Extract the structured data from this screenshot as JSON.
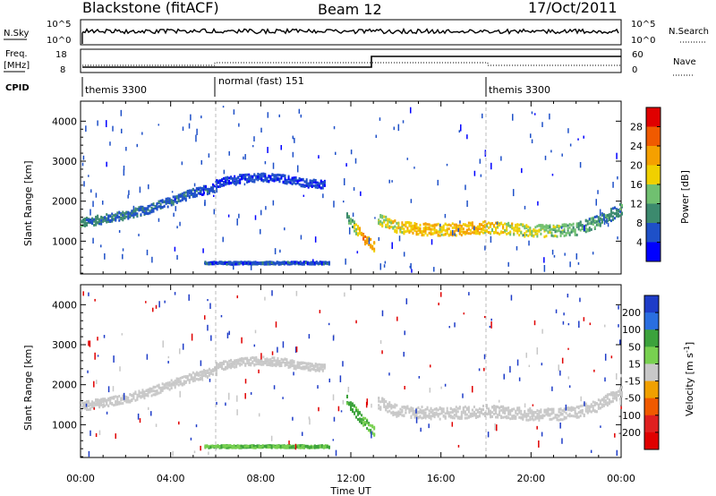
{
  "header": {
    "station": "Blackstone (fitACF)",
    "beam": "Beam 12",
    "date": "17/Oct/2011"
  },
  "status_panels": {
    "nsky_label": "N.Sky",
    "nsky_ticks": [
      "10^5",
      "10^0"
    ],
    "nsearch_label": "N.Search",
    "nsearch_ticks": [
      "10^5",
      "10^0"
    ],
    "freq_label": "Freq.",
    "freq_unit": "[MHz]",
    "freq_ticks": [
      "18",
      "8"
    ],
    "nave_label": "Nave",
    "nave_ticks": [
      "60",
      "0"
    ],
    "cpid_label": "CPID",
    "cpid_segments": [
      {
        "label": "themis 3300",
        "start_hour": 0
      },
      {
        "label": "normal (fast) 151",
        "start_hour": 6
      },
      {
        "label": "themis 3300",
        "start_hour": 18
      }
    ]
  },
  "axes": {
    "xlabel": "Time UT",
    "x_ticks": [
      "00:00",
      "04:00",
      "08:00",
      "12:00",
      "16:00",
      "20:00",
      "00:00"
    ],
    "ylabel": "Slant Range [km]",
    "y_ticks": [
      "1000",
      "2000",
      "3000",
      "4000"
    ]
  },
  "colorbars": {
    "power": {
      "label": "Power [dB]",
      "ticks": [
        "28",
        "24",
        "20",
        "16",
        "12",
        "8",
        "4"
      ],
      "colors": [
        "#e00000",
        "#f05a00",
        "#f5a000",
        "#f0d000",
        "#70c070",
        "#3c8a6e",
        "#1e50c8",
        "#0000ff"
      ]
    },
    "velocity": {
      "label": "Velocity [m s",
      "label_sup": "-1",
      "label_end": "]",
      "ticks": [
        "200",
        "100",
        "50",
        "15",
        "-15",
        "-50",
        "-100",
        "-200"
      ],
      "colors": [
        "#1e3cc8",
        "#2a6ee0",
        "#3ca23c",
        "#78d050",
        "#c8c8c8",
        "#f0a000",
        "#f05a00",
        "#e02020",
        "#e00000"
      ]
    }
  },
  "chart_data": [
    {
      "type": "heatmap",
      "title": "Power",
      "xlabel": "Time UT",
      "ylabel": "Slant Range [km]",
      "xlim": [
        0,
        24
      ],
      "ylim": [
        180,
        4500
      ],
      "bands": [
        {
          "x": [
            0,
            1,
            2,
            3,
            4,
            5,
            6
          ],
          "y": [
            1450,
            1550,
            1650,
            1800,
            2000,
            2200,
            2350
          ],
          "width": 220,
          "power": [
            10,
            8,
            8,
            7,
            7,
            6,
            6
          ]
        },
        {
          "x": [
            6,
            7,
            8,
            9,
            10,
            10.8
          ],
          "y": [
            2450,
            2550,
            2600,
            2550,
            2450,
            2400
          ],
          "width": 200,
          "power": [
            5,
            5,
            5,
            5,
            5,
            5
          ]
        },
        {
          "x": [
            11.8,
            12.2,
            12.6,
            13.0
          ],
          "y": [
            1600,
            1300,
            1050,
            850
          ],
          "width": 250,
          "power": [
            10,
            16,
            24,
            20
          ]
        },
        {
          "x": [
            13.2,
            14,
            15,
            16,
            17,
            18,
            19,
            20,
            21,
            22,
            23,
            24
          ],
          "y": [
            1550,
            1350,
            1300,
            1280,
            1300,
            1350,
            1300,
            1250,
            1250,
            1300,
            1500,
            1800
          ],
          "width": 300,
          "power": [
            16,
            18,
            20,
            18,
            22,
            18,
            18,
            16,
            14,
            12,
            10,
            10
          ]
        },
        {
          "x": [
            5.5,
            8,
            11
          ],
          "y": [
            450,
            450,
            450
          ],
          "width": 60,
          "power": [
            6,
            6,
            6
          ]
        }
      ]
    },
    {
      "type": "heatmap",
      "title": "Velocity",
      "xlabel": "Time UT",
      "ylabel": "Slant Range [km]",
      "xlim": [
        0,
        24
      ],
      "ylim": [
        180,
        4500
      ],
      "bands": [
        {
          "x": [
            0,
            1,
            2,
            3,
            4,
            5,
            6
          ],
          "y": [
            1450,
            1550,
            1650,
            1800,
            2000,
            2200,
            2350
          ],
          "width": 220,
          "velocity": [
            0,
            0,
            0,
            0,
            0,
            0,
            0
          ]
        },
        {
          "x": [
            6,
            7,
            8,
            9,
            10,
            10.8
          ],
          "y": [
            2450,
            2550,
            2600,
            2550,
            2450,
            2400
          ],
          "width": 200,
          "velocity": [
            0,
            0,
            0,
            0,
            0,
            0
          ]
        },
        {
          "x": [
            11.8,
            12.2,
            12.6,
            13.0
          ],
          "y": [
            1600,
            1300,
            1050,
            850
          ],
          "width": 250,
          "velocity": [
            40,
            40,
            30,
            20
          ]
        },
        {
          "x": [
            13.2,
            14,
            15,
            16,
            17,
            18,
            19,
            20,
            21,
            22,
            23,
            24
          ],
          "y": [
            1550,
            1350,
            1300,
            1280,
            1300,
            1350,
            1300,
            1250,
            1250,
            1300,
            1500,
            1800
          ],
          "width": 300,
          "velocity": [
            0,
            0,
            0,
            0,
            0,
            0,
            0,
            0,
            0,
            0,
            0,
            0
          ]
        },
        {
          "x": [
            5.5,
            8,
            11
          ],
          "y": [
            450,
            450,
            450
          ],
          "width": 60,
          "velocity": [
            30,
            30,
            30
          ]
        }
      ]
    }
  ]
}
